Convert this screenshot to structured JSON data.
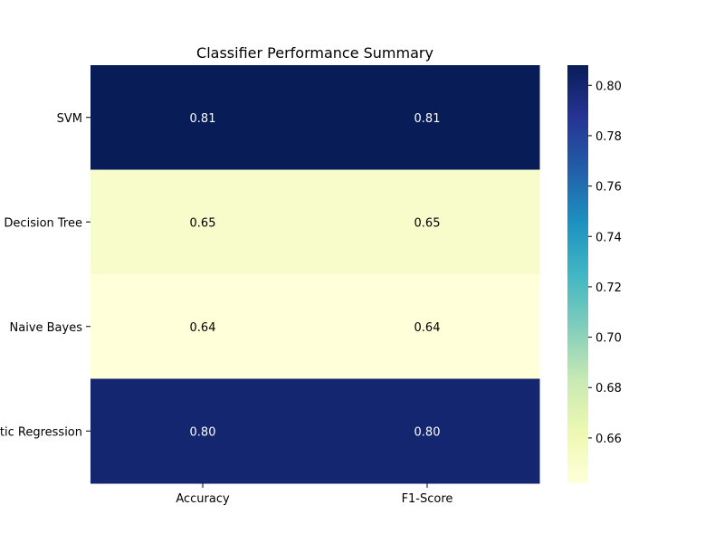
{
  "chart_data": {
    "type": "heatmap",
    "title": "Classifier Performance Summary",
    "rows": [
      "SVM",
      "Decision Tree",
      "Naive Bayes",
      "Logistic Regression"
    ],
    "columns": [
      "Accuracy",
      "F1-Score"
    ],
    "values": [
      [
        0.81,
        0.81
      ],
      [
        0.65,
        0.65
      ],
      [
        0.64,
        0.64
      ],
      [
        0.8,
        0.8
      ]
    ],
    "annotations": [
      [
        "0.81",
        "0.81"
      ],
      [
        "0.65",
        "0.65"
      ],
      [
        "0.64",
        "0.64"
      ],
      [
        "0.80",
        "0.80"
      ]
    ],
    "colormap": "YlGnBu",
    "colorbar": {
      "range": [
        0.642,
        0.808
      ],
      "ticks": [
        0.66,
        0.68,
        0.7,
        0.72,
        0.74,
        0.76,
        0.78,
        0.8
      ],
      "tick_labels": [
        "0.66",
        "0.68",
        "0.70",
        "0.72",
        "0.74",
        "0.76",
        "0.78",
        "0.80"
      ]
    },
    "colors": {
      "cell_dark_text": "#ffffff",
      "cell_light_text": "#000000"
    }
  }
}
